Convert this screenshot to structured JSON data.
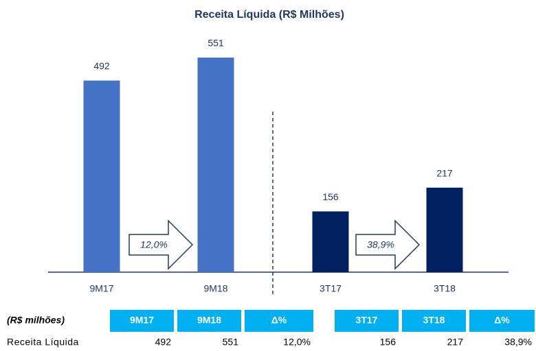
{
  "chart_data": {
    "type": "bar",
    "title": "Receita Líquida (R$ Milhões)",
    "categories": [
      "9M17",
      "9M18",
      "3T17",
      "3T18"
    ],
    "values": [
      492,
      551,
      156,
      217
    ],
    "colors": [
      "#4472c4",
      "#4472c4",
      "#002060",
      "#002060"
    ],
    "annotations": [
      "12,0%",
      "38,9%"
    ]
  },
  "table": {
    "caption": "(R$ milhões)",
    "header": [
      "9M17",
      "9M18",
      "Δ%",
      "3T17",
      "3T18",
      "Δ%"
    ],
    "rows": [
      [
        "Receita Líquida",
        "492",
        "551",
        "12,0%",
        "156",
        "217",
        "38,9%"
      ]
    ]
  }
}
